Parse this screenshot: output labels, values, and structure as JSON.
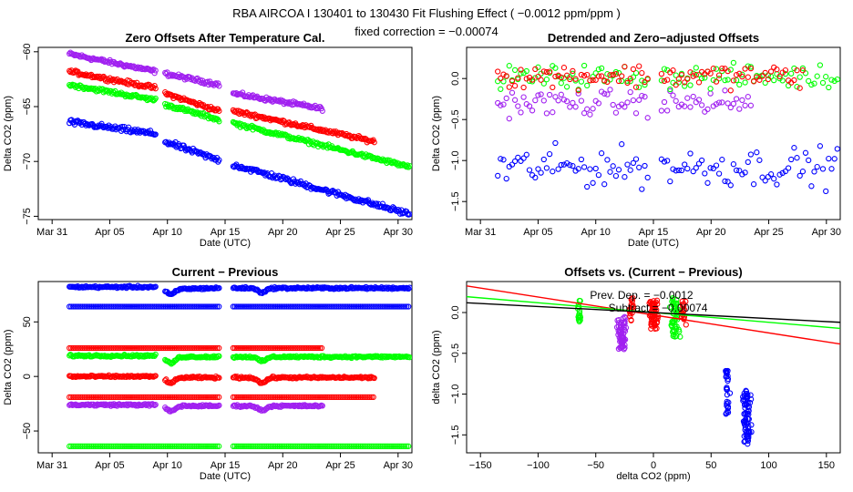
{
  "header": {
    "title": "RBA   AIRCOA I   130401 to 130430   Fit Flushing Effect ( −0.0012 ppm/ppm )",
    "subtitle": "fixed correction = −0.00074"
  },
  "colors": {
    "blue": "#0000ff",
    "red": "#ff0000",
    "green": "#00ff00",
    "purple": "#a020f0",
    "black": "#000000"
  },
  "chart_data": [
    {
      "id": "p1",
      "type": "scatter",
      "title": "Zero Offsets After Temperature Cal.",
      "xlabel": "Date (UTC)",
      "ylabel": "Delta CO2 (ppm)",
      "xlim": [
        -1.2,
        31.2
      ],
      "ylim": [
        -75.3,
        -59.6
      ],
      "xticks": [
        0,
        5,
        10,
        15,
        20,
        25,
        30
      ],
      "xticklabels": [
        "Mar 31",
        "Apr 05",
        "Apr 10",
        "Apr 15",
        "Apr 20",
        "Apr 25",
        "Apr 30"
      ],
      "yticks": [
        -75,
        -70,
        -65,
        -60
      ],
      "yticklabels": [
        "−75",
        "−70",
        "−65",
        "−60"
      ],
      "series": [
        {
          "name": "purple",
          "color": "purple",
          "segments": [
            [
              1.5,
              9,
              -60.2,
              -61.8
            ],
            [
              9.8,
              14.5,
              -62.0,
              -63.0
            ],
            [
              15.7,
              23.5,
              -63.8,
              -65.2
            ]
          ],
          "noise": 0.15,
          "step": 0.09
        },
        {
          "name": "red",
          "color": "red",
          "segments": [
            [
              1.5,
              9,
              -61.8,
              -63.3
            ],
            [
              9.8,
              14.5,
              -63.8,
              -65.4
            ],
            [
              15.7,
              28.0,
              -65.4,
              -68.2
            ]
          ],
          "noise": 0.15,
          "step": 0.09
        },
        {
          "name": "green",
          "color": "green",
          "segments": [
            [
              1.5,
              9,
              -63.0,
              -64.4
            ],
            [
              9.8,
              14.5,
              -64.8,
              -66.2
            ],
            [
              15.7,
              31.0,
              -66.5,
              -70.5
            ]
          ],
          "noise": 0.15,
          "step": 0.09
        },
        {
          "name": "blue",
          "color": "blue",
          "segments": [
            [
              1.5,
              9,
              -66.4,
              -67.5
            ],
            [
              9.8,
              14.5,
              -68.2,
              -69.9
            ],
            [
              15.7,
              31.0,
              -70.3,
              -74.8
            ]
          ],
          "noise": 0.2,
          "step": 0.09
        }
      ]
    },
    {
      "id": "p2",
      "type": "scatter",
      "title": "Detrended and Zero−adjusted Offsets",
      "xlabel": "Date (UTC)",
      "ylabel": "Delta CO2 (ppm)",
      "xlim": [
        -1.2,
        31.2
      ],
      "ylim": [
        -1.72,
        0.38
      ],
      "xticks": [
        0,
        5,
        10,
        15,
        20,
        25,
        30
      ],
      "xticklabels": [
        "Mar 31",
        "Apr 05",
        "Apr 10",
        "Apr 15",
        "Apr 20",
        "Apr 25",
        "Apr 30"
      ],
      "yticks": [
        -1.5,
        -1.0,
        -0.5,
        0.0
      ],
      "yticklabels": [
        "−1.5",
        "−1.0",
        "−0.5",
        "0.0"
      ],
      "series": [
        {
          "name": "purple",
          "color": "purple",
          "segments": [
            [
              1.5,
              14.5,
              -0.3,
              -0.3
            ],
            [
              15.7,
              23.5,
              -0.3,
              -0.3
            ]
          ],
          "noise": 0.13,
          "step": 0.25
        },
        {
          "name": "blue",
          "color": "blue",
          "segments": [
            [
              1.5,
              14.5,
              -1.08,
              -1.08
            ],
            [
              15.7,
              31.0,
              -1.08,
              -1.08
            ]
          ],
          "noise": 0.2,
          "step": 0.25
        },
        {
          "name": "green",
          "color": "green",
          "segments": [
            [
              1.5,
              14.5,
              0.02,
              0.02
            ],
            [
              15.7,
              31.0,
              0.02,
              0.02
            ]
          ],
          "noise": 0.12,
          "step": 0.25
        },
        {
          "name": "red",
          "color": "red",
          "segments": [
            [
              1.5,
              14.5,
              0.03,
              0.03
            ],
            [
              15.7,
              28.0,
              0.03,
              0.03
            ]
          ],
          "noise": 0.12,
          "step": 0.25
        }
      ]
    },
    {
      "id": "p3",
      "type": "scatter",
      "title": "Current − Previous",
      "xlabel": "Date (UTC)",
      "ylabel": "Delta CO2 (ppm)",
      "xlim": [
        -1.2,
        31.2
      ],
      "ylim": [
        -70,
        87
      ],
      "xticks": [
        0,
        5,
        10,
        15,
        20,
        25,
        30
      ],
      "xticklabels": [
        "Mar 31",
        "Apr 05",
        "Apr 10",
        "Apr 15",
        "Apr 20",
        "Apr 25",
        "Apr 30"
      ],
      "yticks": [
        -50,
        0,
        50
      ],
      "yticklabels": [
        "−50",
        "0",
        "50"
      ],
      "series": [
        {
          "name": "blue_high",
          "color": "blue",
          "segments": [
            [
              1.5,
              9,
              82,
              82
            ],
            [
              9.8,
              14.5,
              80,
              81
            ],
            [
              15.7,
              31.0,
              81,
              81
            ]
          ],
          "noise": 0.8,
          "step": 0.09,
          "dips": [
            [
              10.3,
              -5
            ],
            [
              18.2,
              -4
            ]
          ]
        },
        {
          "name": "blue_low",
          "color": "blue",
          "segments": [
            [
              1.5,
              14.5,
              64,
              64
            ],
            [
              15.7,
              31.0,
              64,
              64
            ]
          ],
          "noise": 0,
          "step": 0.16
        },
        {
          "name": "red_high",
          "color": "red",
          "segments": [
            [
              1.5,
              14.5,
              26,
              26
            ],
            [
              15.7,
              23.5,
              26,
              26
            ]
          ],
          "noise": 0,
          "step": 0.16
        },
        {
          "name": "green",
          "color": "green",
          "segments": [
            [
              1.5,
              9,
              19,
              19
            ],
            [
              9.8,
              14.5,
              18,
              18
            ],
            [
              15.7,
              31.0,
              18,
              18
            ]
          ],
          "noise": 0.8,
          "step": 0.09,
          "dips": [
            [
              10.3,
              -6
            ],
            [
              18.2,
              -4
            ]
          ]
        },
        {
          "name": "red",
          "color": "red",
          "segments": [
            [
              1.5,
              9,
              0,
              0
            ],
            [
              9.8,
              14.5,
              -1,
              -1
            ],
            [
              15.7,
              28.0,
              -1,
              -1
            ]
          ],
          "noise": 0.8,
          "step": 0.09,
          "dips": [
            [
              10.3,
              -5
            ],
            [
              18.2,
              -5
            ]
          ]
        },
        {
          "name": "red_low",
          "color": "red",
          "segments": [
            [
              1.5,
              14.5,
              -19,
              -19
            ],
            [
              15.7,
              28.0,
              -19,
              -19
            ]
          ],
          "noise": 0,
          "step": 0.16
        },
        {
          "name": "purple",
          "color": "purple",
          "segments": [
            [
              1.5,
              9,
              -26,
              -26
            ],
            [
              9.8,
              14.5,
              -27,
              -27
            ],
            [
              15.7,
              23.5,
              -27,
              -27
            ]
          ],
          "noise": 0.8,
          "step": 0.09,
          "dips": [
            [
              10.3,
              -5
            ],
            [
              18.2,
              -4
            ]
          ]
        },
        {
          "name": "green_low",
          "color": "green",
          "segments": [
            [
              1.5,
              14.5,
              -64,
              -64
            ],
            [
              15.7,
              31.0,
              -64,
              -64
            ]
          ],
          "noise": 0,
          "step": 0.16
        }
      ]
    },
    {
      "id": "p4",
      "type": "scatter",
      "title": "Offsets vs. (Current − Previous)",
      "xlabel": "delta CO2 (ppm)",
      "ylabel": "delta CO2 (ppm)",
      "xlim": [
        -162,
        162
      ],
      "ylim": [
        -1.72,
        0.38
      ],
      "xticks": [
        -150,
        -100,
        -50,
        0,
        50,
        100,
        150
      ],
      "xticklabels": [
        "−150",
        "−100",
        "−50",
        "0",
        "50",
        "100",
        "150"
      ],
      "yticks": [
        -1.5,
        -1.0,
        -0.5,
        0.0
      ],
      "yticklabels": [
        "−1.5",
        "−1.0",
        "−0.5",
        "0.0"
      ],
      "clusters": [
        {
          "color": "green",
          "x": -64,
          "xspread": 1.5,
          "y": [
            -0.15,
            0.15
          ],
          "n": 18
        },
        {
          "color": "purple",
          "x": -27,
          "xspread": 3.5,
          "y": [
            -0.45,
            -0.05
          ],
          "n": 60
        },
        {
          "color": "red",
          "x": -19,
          "xspread": 1.5,
          "y": [
            -0.1,
            0.2
          ],
          "n": 20
        },
        {
          "color": "red",
          "x": 0,
          "xspread": 3.5,
          "y": [
            -0.2,
            0.15
          ],
          "n": 60
        },
        {
          "color": "green",
          "x": 19,
          "xspread": 3.5,
          "y": [
            -0.3,
            0.2
          ],
          "n": 50
        },
        {
          "color": "red",
          "x": 26,
          "xspread": 1.5,
          "y": [
            -0.15,
            0.15
          ],
          "n": 18
        },
        {
          "color": "blue",
          "x": 64,
          "xspread": 1.5,
          "y": [
            -1.25,
            -0.7
          ],
          "n": 30
        },
        {
          "color": "blue",
          "x": 81,
          "xspread": 3.5,
          "y": [
            -1.62,
            -0.92
          ],
          "n": 70
        }
      ],
      "lines": [
        {
          "name": "fit_red",
          "color": "red",
          "slope": -0.0022,
          "intercept": -0.03
        },
        {
          "name": "fit_green",
          "color": "green",
          "slope": -0.0012,
          "intercept": 0.0
        },
        {
          "name": "fit_black",
          "color": "black",
          "slope": -0.00074,
          "intercept": -0.0
        }
      ],
      "annotations": [
        {
          "text": "Prev. Dep. = −0.0012",
          "x": -55,
          "y": 0.17
        },
        {
          "text": "Subtract = −0.00074",
          "x": -39,
          "y": 0.01
        }
      ]
    }
  ]
}
